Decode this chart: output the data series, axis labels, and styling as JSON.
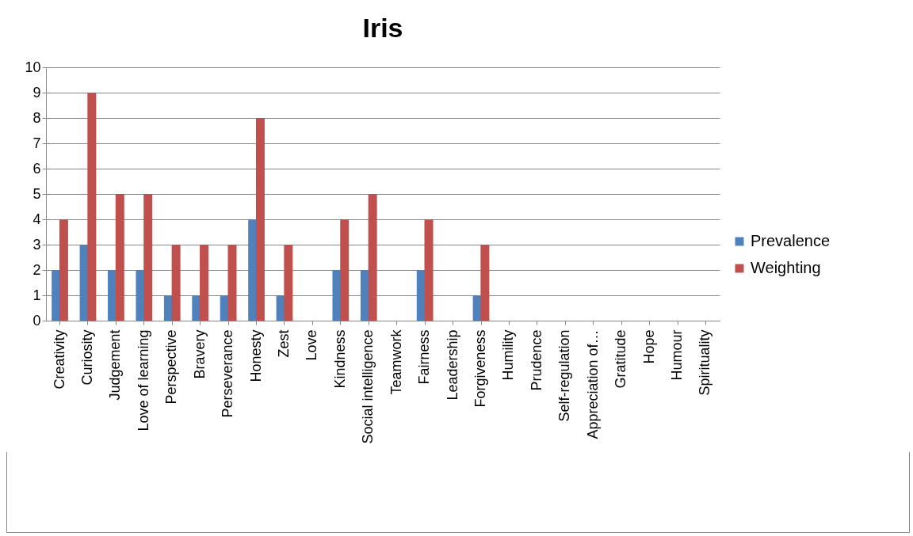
{
  "chart_data": {
    "type": "bar",
    "title": "Iris",
    "categories": [
      "Creativity",
      "Curiosity",
      "Judgement",
      "Love of learning",
      "Perspective",
      "Bravery",
      "Perseverance",
      "Honesty",
      "Zest",
      "Love",
      "Kindness",
      "Social intelligence",
      "Teamwork",
      "Fairness",
      "Leadership",
      "Forgiveness",
      "Humility",
      "Prudence",
      "Self-regulation",
      "Appreciation of…",
      "Gratitude",
      "Hope",
      "Humour",
      "Spirituality"
    ],
    "series": [
      {
        "name": "Prevalence",
        "color": "#4f81bd",
        "values": [
          2,
          3,
          2,
          2,
          1,
          1,
          1,
          4,
          1,
          0,
          2,
          2,
          0,
          2,
          0,
          1,
          0,
          0,
          0,
          0,
          0,
          0,
          0,
          0
        ]
      },
      {
        "name": "Weighting",
        "color": "#c0504d",
        "values": [
          4,
          9,
          5,
          5,
          3,
          3,
          3,
          8,
          3,
          0,
          4,
          5,
          0,
          4,
          0,
          3,
          0,
          0,
          0,
          0,
          0,
          0,
          0,
          0
        ]
      }
    ],
    "ylim": [
      0,
      10
    ],
    "yticks": [
      0,
      1,
      2,
      3,
      4,
      5,
      6,
      7,
      8,
      9,
      10
    ],
    "grid": "y",
    "legend": "right"
  }
}
